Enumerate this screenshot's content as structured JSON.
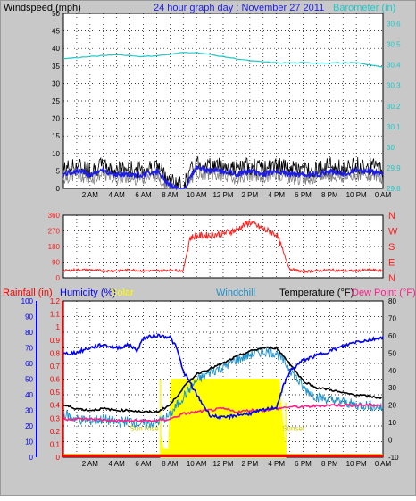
{
  "header": {
    "left_label": "Windspeed (mph)",
    "title": "24 hour graph day : November 27 2011",
    "right_label": "Barometer (in)"
  },
  "colors": {
    "background": "#c8c8c8",
    "plot_bg": "#ffffff",
    "wind_speed": "#000000",
    "wind_avg": "#1e1ee6",
    "wind_gust": "#808080",
    "barometer": "#1ec8c8",
    "direction": "#ff1e1e",
    "rain": "#ff0000",
    "humidity": "#0000ff",
    "solar": "#ffff00",
    "windchill": "#1e90c8",
    "temperature": "#000000",
    "dewpoint": "#ff1e8c"
  },
  "time_labels": [
    "2 AM",
    "4 AM",
    "6 AM",
    "8 AM",
    "10 AM",
    "12 PM",
    "2 PM",
    "4 PM",
    "6 PM",
    "8 PM",
    "10 PM",
    "0 AM"
  ],
  "chart_data": [
    {
      "type": "line",
      "name": "wind_and_barometer",
      "x_unit": "hour",
      "xlim": [
        0,
        24
      ],
      "y_left": {
        "label": "Windspeed (mph)",
        "ylim": [
          0,
          50
        ],
        "ticks": [
          "0",
          "5",
          "10",
          "15",
          "20",
          "25",
          "30",
          "35",
          "40",
          "45",
          "50"
        ]
      },
      "y_right": {
        "label": "Barometer (in)",
        "ylim": [
          29.8,
          30.65
        ],
        "ticks": [
          "29.8",
          "29.9",
          "30",
          "30.1",
          "30.2",
          "30.3",
          "30.4",
          "30.5",
          "30.6"
        ]
      },
      "series": [
        {
          "name": "Windspeed",
          "axis": "left",
          "x": [
            0,
            1,
            2,
            3,
            4,
            5,
            6,
            7,
            7.5,
            8,
            8.5,
            9,
            9.5,
            10,
            11,
            12,
            13,
            14,
            15,
            16,
            17,
            18,
            19,
            20,
            21,
            22,
            23,
            24
          ],
          "y": [
            5,
            6,
            5,
            6,
            5,
            5,
            5,
            6,
            4,
            2,
            1,
            0,
            4,
            7,
            6,
            6,
            5,
            6,
            5,
            6,
            5,
            5,
            5,
            6,
            5,
            6,
            6,
            5
          ]
        },
        {
          "name": "Barometer",
          "axis": "right",
          "x": [
            0,
            2,
            4,
            6,
            8,
            9,
            10,
            11,
            12,
            14,
            16,
            18,
            20,
            22,
            24
          ],
          "y": [
            30.43,
            30.44,
            30.45,
            30.44,
            30.45,
            30.46,
            30.46,
            30.45,
            30.44,
            30.42,
            30.41,
            30.41,
            30.41,
            30.41,
            30.39
          ]
        }
      ],
      "grid": true
    },
    {
      "type": "line",
      "name": "wind_direction",
      "x_unit": "hour",
      "xlim": [
        0,
        24
      ],
      "y_left": {
        "ylim": [
          0,
          360
        ],
        "ticks": [
          "0",
          "90",
          "180",
          "270",
          "360"
        ]
      },
      "y_right": {
        "ticks": [
          "N",
          "E",
          "S",
          "W",
          "N"
        ]
      },
      "series": [
        {
          "name": "Wind direction",
          "x": [
            0,
            1,
            2,
            3,
            4,
            5,
            6,
            7,
            8,
            9,
            9.5,
            10,
            11,
            12,
            13,
            13.5,
            14,
            15,
            16,
            16.5,
            17,
            18,
            19,
            20,
            21,
            22,
            23,
            24
          ],
          "y": [
            40,
            45,
            45,
            40,
            40,
            45,
            40,
            40,
            45,
            40,
            230,
            240,
            245,
            255,
            275,
            300,
            320,
            280,
            250,
            150,
            50,
            35,
            40,
            45,
            40,
            40,
            45,
            40
          ]
        }
      ],
      "grid": true
    },
    {
      "type": "line",
      "name": "weather_lower",
      "x_unit": "hour",
      "xlim": [
        0,
        24
      ],
      "labels": {
        "rain": "Rainfall (in)",
        "humidity": "Humidity (%)",
        "solar": "Solar",
        "windchill": "Windchill",
        "temperature": "Temperature (°F)",
        "dewpoint": "Dew Point (°F)",
        "sunrise": "Sun Rise",
        "sunset": "Sunset"
      },
      "y_rain": {
        "ylim": [
          0,
          1.2
        ],
        "ticks": [
          "0",
          "0.1",
          "0.2",
          "0.3",
          "0.4",
          "0.5",
          "0.6",
          "0.7",
          "0.8",
          "0.9",
          "1",
          "1.1",
          "1.2"
        ]
      },
      "y_humidity": {
        "ylim": [
          0,
          100
        ],
        "ticks": [
          "0",
          "10",
          "20",
          "30",
          "40",
          "50",
          "60",
          "70",
          "80",
          "90",
          "100"
        ]
      },
      "y_temp": {
        "ylim": [
          -10,
          80
        ],
        "ticks": [
          "-10",
          "0",
          "10",
          "20",
          "30",
          "40",
          "50",
          "60",
          "70",
          "80"
        ]
      },
      "sunrise_hour": 7.3,
      "sunset_hour": 16.7,
      "series": [
        {
          "name": "Humidity",
          "axis": "humidity",
          "x": [
            0,
            1,
            2,
            3,
            4,
            5,
            5.5,
            6,
            7,
            8,
            8.5,
            9,
            9.5,
            10,
            11,
            12,
            13,
            14,
            15,
            16,
            16.5,
            17,
            18,
            19,
            20,
            21,
            22,
            23,
            24
          ],
          "y": [
            66,
            67,
            70,
            72,
            70,
            72,
            68,
            76,
            78,
            77,
            70,
            55,
            48,
            40,
            27,
            25,
            27,
            28,
            30,
            32,
            45,
            55,
            62,
            65,
            68,
            71,
            74,
            75,
            77
          ]
        },
        {
          "name": "Temperature",
          "axis": "temp",
          "x": [
            0,
            1,
            2,
            3,
            4,
            5,
            6,
            7,
            8,
            9,
            10,
            11,
            12,
            13,
            14,
            15,
            16,
            17,
            18,
            19,
            20,
            21,
            22,
            23,
            24
          ],
          "y": [
            20,
            18,
            17,
            18,
            17,
            17,
            16,
            16,
            20,
            30,
            38,
            41,
            44,
            48,
            51,
            53,
            53,
            44,
            34,
            30,
            29,
            27,
            26,
            25,
            24
          ]
        },
        {
          "name": "Windchill",
          "axis": "temp",
          "x": [
            0,
            1,
            2,
            3,
            4,
            5,
            6,
            7,
            8,
            9,
            10,
            11,
            12,
            13,
            14,
            15,
            16,
            17,
            18,
            19,
            20,
            21,
            22,
            23,
            24
          ],
          "y": [
            15,
            12,
            11,
            12,
            10,
            11,
            9,
            10,
            14,
            25,
            34,
            39,
            42,
            46,
            49,
            51,
            50,
            41,
            30,
            25,
            23,
            22,
            20,
            20,
            18
          ]
        },
        {
          "name": "Dew Point",
          "axis": "temp",
          "x": [
            0,
            2,
            4,
            6,
            7,
            8,
            9,
            10,
            11,
            12,
            13,
            14,
            15,
            16,
            17,
            18,
            20,
            22,
            24
          ],
          "y": [
            12,
            12,
            11,
            11,
            11,
            12,
            15,
            16,
            17,
            18,
            16,
            17,
            17,
            18,
            19,
            19,
            20,
            20,
            20
          ]
        },
        {
          "name": "Solar",
          "axis": "humidity",
          "x": [
            7.3,
            7.5,
            7.9,
            8.1,
            8.4,
            16.2,
            16.5,
            16.7
          ],
          "y": [
            15,
            5,
            5,
            50,
            50,
            50,
            20,
            0
          ]
        },
        {
          "name": "Rainfall",
          "axis": "rain",
          "x": [
            0,
            24
          ],
          "y": [
            0,
            0
          ]
        }
      ],
      "grid": true
    }
  ]
}
